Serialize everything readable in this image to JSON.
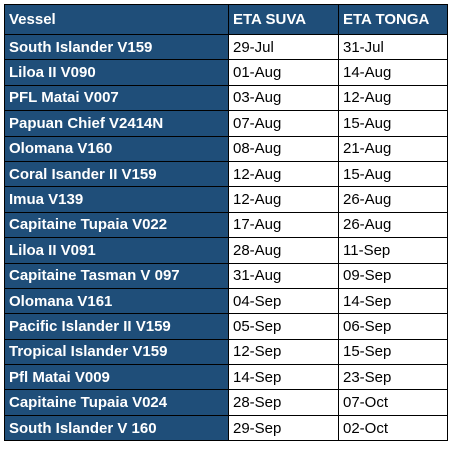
{
  "table": {
    "headers": [
      "Vessel",
      "ETA SUVA",
      "ETA TONGA"
    ],
    "rows": [
      [
        "South Islander V159",
        "29-Jul",
        "31-Jul"
      ],
      [
        "Liloa II V090",
        "01-Aug",
        "14-Aug"
      ],
      [
        "PFL Matai V007",
        "03-Aug",
        "12-Aug"
      ],
      [
        "Papuan Chief V2414N",
        "07-Aug",
        "15-Aug"
      ],
      [
        "Olomana V160",
        "08-Aug",
        "21-Aug"
      ],
      [
        "Coral Isander II V159",
        "12-Aug",
        "15-Aug"
      ],
      [
        "Imua V139",
        "12-Aug",
        "26-Aug"
      ],
      [
        "Capitaine Tupaia V022",
        "17-Aug",
        "26-Aug"
      ],
      [
        "Liloa II V091",
        "28-Aug",
        "11-Sep"
      ],
      [
        "Capitaine Tasman V 097",
        "31-Aug",
        "09-Sep"
      ],
      [
        "Olomana V161",
        "04-Sep",
        "14-Sep"
      ],
      [
        "Pacific Islander II V159",
        "05-Sep",
        "06-Sep"
      ],
      [
        "Tropical Islander V159",
        "12-Sep",
        "15-Sep"
      ],
      [
        "Pfl Matai V009",
        "14-Sep",
        "23-Sep"
      ],
      [
        "Capitaine Tupaia V024",
        "28-Sep",
        "07-Oct"
      ],
      [
        "South Islander V 160",
        "29-Sep",
        "02-Oct"
      ]
    ]
  }
}
